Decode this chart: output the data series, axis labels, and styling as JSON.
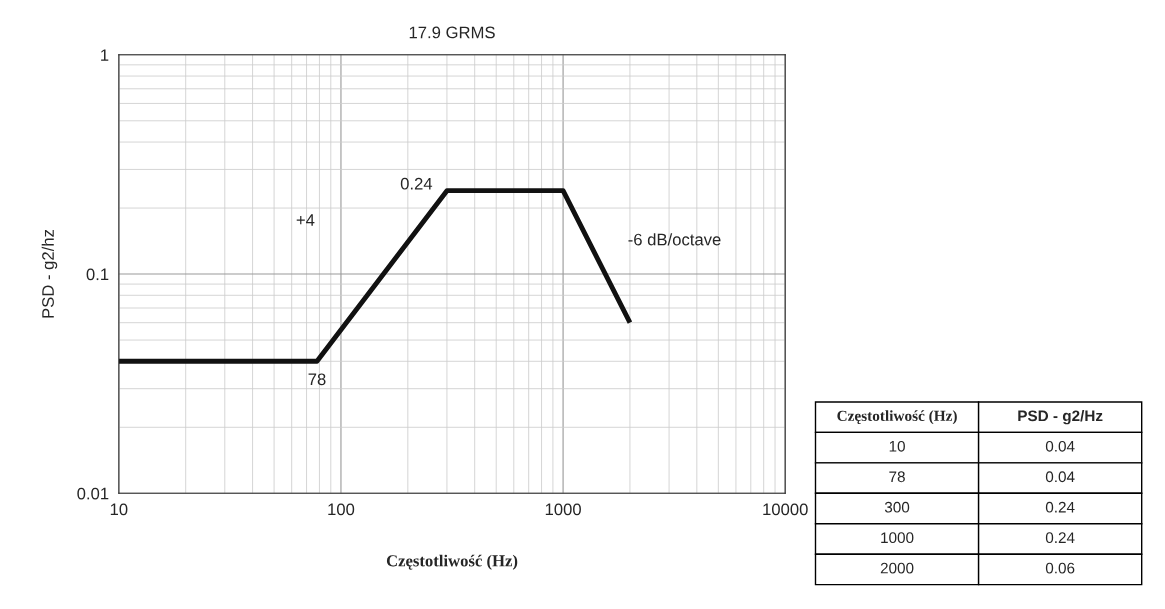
{
  "chart_data": [
    {
      "type": "line",
      "title": "17.9 GRMS",
      "xlabel": "Częstotliwość (Hz)",
      "ylabel": "PSD - g2/hz",
      "x": [
        10,
        78,
        300,
        1000,
        2000
      ],
      "series": [
        {
          "color": "#111111",
          "values": [
            0.04,
            0.04,
            0.24,
            0.24,
            0.06
          ]
        }
      ],
      "log": "xy",
      "xlim": [
        10,
        10000
      ],
      "ylim": [
        0.01,
        1
      ],
      "xticks": [
        10,
        100,
        1000,
        10000
      ],
      "yticks": [
        0.01,
        0.1,
        1
      ],
      "grid": true,
      "marker": "none",
      "line_style": "solid",
      "annotations": [
        "+4",
        {
          "text": "78",
          "x": 78,
          "y": 0.04
        },
        {
          "text": "0.24",
          "x": 300,
          "y": 0.24
        },
        {
          "text": "-6 dB/octave",
          "x": 1300,
          "y": 0.15
        }
      ]
    },
    {
      "type": "other",
      "annotations": [
        "Częstotliwość (Hz)",
        "PSD - g2/Hz",
        "10",
        "0.04",
        "78",
        "0.04",
        "300",
        "0.24",
        "1000",
        "0.24",
        "2000",
        "0.06"
      ]
    }
  ]
}
